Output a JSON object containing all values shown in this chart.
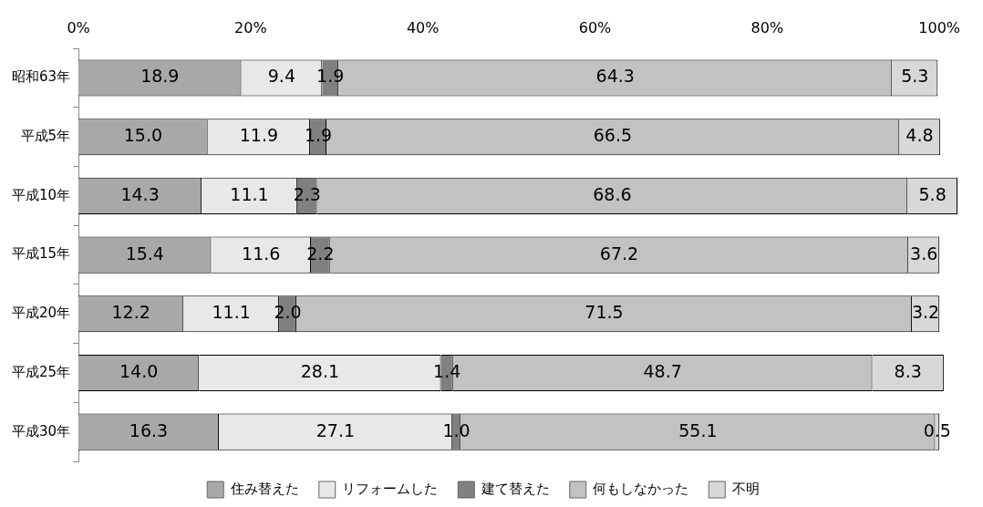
{
  "chart_data": {
    "type": "bar",
    "orientation": "horizontal",
    "stacked": true,
    "categories": [
      "昭和63年",
      "平成5年",
      "平成10年",
      "平成15年",
      "平成20年",
      "平成25年",
      "平成30年"
    ],
    "series": [
      {
        "name": "住み替えた",
        "color": "#a8a8a8",
        "values": [
          18.9,
          15.0,
          14.3,
          15.4,
          12.2,
          14.0,
          16.3
        ],
        "value_labels": [
          "18.9",
          "15.0",
          "14.3",
          "15.4",
          "12.2",
          "14.0",
          "16.3"
        ]
      },
      {
        "name": "リフォームした",
        "color": "#e8e8e8",
        "values": [
          9.4,
          11.9,
          11.1,
          11.6,
          11.1,
          28.1,
          27.1
        ],
        "value_labels": [
          "9.4",
          "11.9",
          "11.1",
          "11.6",
          "11.1",
          "28.1",
          "27.1"
        ]
      },
      {
        "name": "建て替えた",
        "color": "#808080",
        "values": [
          1.9,
          1.9,
          2.3,
          2.2,
          2.0,
          1.4,
          1.0
        ],
        "value_labels": [
          "1.9",
          "1.9",
          "2.3",
          "2.2",
          "2.0",
          "1.4",
          "1.0"
        ]
      },
      {
        "name": "何もしなかった",
        "color": "#c2c2c2",
        "values": [
          64.3,
          66.5,
          68.6,
          67.2,
          71.5,
          48.7,
          55.1
        ],
        "value_labels": [
          "64.3",
          "66.5",
          "68.6",
          "67.2",
          "71.5",
          "48.7",
          "55.1"
        ]
      },
      {
        "name": "不明",
        "color": "#d8d8d8",
        "values": [
          5.3,
          4.8,
          5.8,
          3.6,
          3.2,
          8.3,
          0.5
        ],
        "value_labels": [
          "5.3",
          "4.8",
          "5.8",
          "3.6",
          "3.2",
          "8.3",
          "0.5"
        ]
      }
    ],
    "xlim": [
      0,
      102.1
    ],
    "xticks": [
      {
        "value": 0,
        "label": "0%"
      },
      {
        "value": 20,
        "label": "20%"
      },
      {
        "value": 40,
        "label": "40%"
      },
      {
        "value": 60,
        "label": "60%"
      },
      {
        "value": 80,
        "label": "80%"
      },
      {
        "value": 100,
        "label": "100%"
      }
    ],
    "grid": false,
    "legend": "bottom"
  }
}
